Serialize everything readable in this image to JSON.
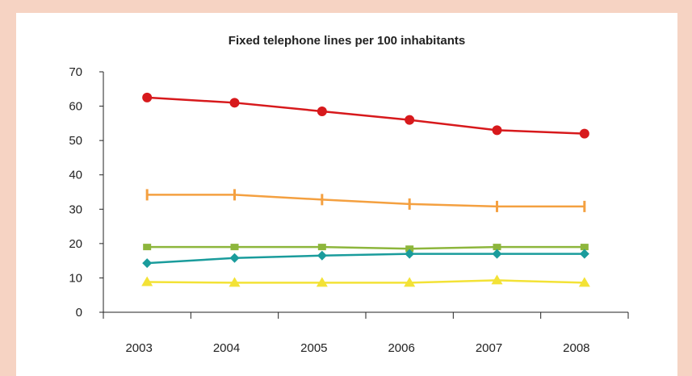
{
  "colors": {
    "background": "#f6d3c3",
    "panel": "#ffffff",
    "axis": "#222222"
  },
  "chart_data": {
    "type": "line",
    "title": "Fixed telephone lines per 100 inhabitants",
    "xlabel": "",
    "ylabel": "",
    "categories": [
      "2003",
      "2004",
      "2005",
      "2006",
      "2007",
      "2008"
    ],
    "ylim": [
      0,
      70
    ],
    "yticks": [
      0,
      10,
      20,
      30,
      40,
      50,
      60,
      70
    ],
    "grid": false,
    "legend": "none",
    "series": [
      {
        "color": "#d7191c",
        "marker": "circle",
        "values": [
          62.5,
          61.0,
          58.5,
          56.0,
          53.0,
          52.0
        ]
      },
      {
        "color": "#f4a040",
        "marker": "dash",
        "values": [
          34.2,
          34.2,
          32.8,
          31.5,
          30.8,
          30.8
        ]
      },
      {
        "color": "#8db63c",
        "marker": "square",
        "values": [
          19.0,
          19.0,
          19.0,
          18.5,
          19.0,
          19.0
        ]
      },
      {
        "color": "#1a9c9c",
        "marker": "diamond",
        "values": [
          14.3,
          15.8,
          16.5,
          17.0,
          17.0,
          17.0
        ]
      },
      {
        "color": "#f3e236",
        "marker": "triangle",
        "values": [
          8.8,
          8.6,
          8.6,
          8.6,
          9.3,
          8.6
        ]
      }
    ]
  }
}
